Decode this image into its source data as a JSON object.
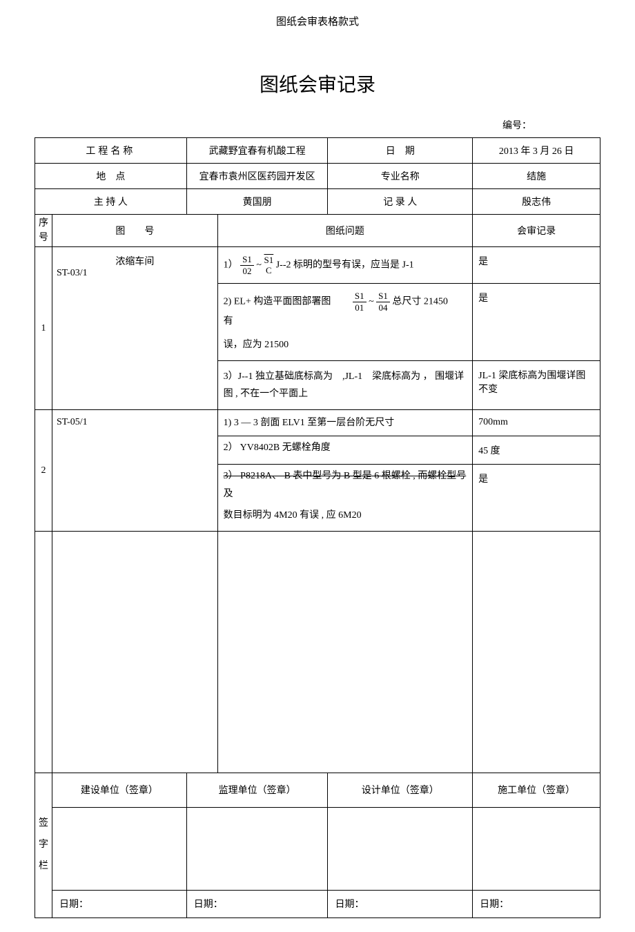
{
  "header": "图纸会审表格款式",
  "title": "图纸会审记录",
  "docNumberLabel": "编号：",
  "info": {
    "projectNameLabel": "工程名称",
    "projectName": "武藏野宜春有机酸工程",
    "dateLabel": "日　期",
    "date": "2013 年 3 月 26 日",
    "locationLabel": "地　点",
    "location": "宜春市袁州区医药园开发区",
    "specialtyLabel": "专业名称",
    "specialty": "结施",
    "hostLabel": "主 持 人",
    "host": "黄国朋",
    "recorderLabel": "记 录 人",
    "recorder": "殷志伟"
  },
  "tableHeaders": {
    "seq": "序号",
    "drawingNo": "图　　号",
    "problem": "图纸问题",
    "record": "会审记录"
  },
  "rows": [
    {
      "seq": "1",
      "drawingTitle": "浓缩车间",
      "drawingNo": "ST-03/1",
      "problems": [
        {
          "prefix": "1）",
          "frac1_top": "S1",
          "frac1_bot": "02",
          "tilde": " ~ ",
          "frac2_top": "S1",
          "frac2_bot": "C",
          "suffix": " J--2  标明的型号有误，应当是  J-1",
          "record": "是"
        },
        {
          "prefix": "2) EL+ 构造平面图部署图　　",
          "frac1_top": "S1",
          "frac1_bot": "01",
          "tilde": " ~ ",
          "frac2_top": "S1",
          "frac2_bot": "04",
          "mid": "  总尺寸 21450　　有",
          "line2": "误，应为 21500",
          "record": "是"
        },
        {
          "text": "3）J--1  独立基础底标高为　,JL-1　梁底标高为 ，  围堰详图 , 不在一个平面上",
          "record": "JL-1 梁底标高为围堰详图不变"
        }
      ]
    },
    {
      "seq": "2",
      "drawingNo": "ST-05/1",
      "problems": [
        {
          "text": "1) 3 — 3 剖面 ELV1 至第一层台阶无尺寸",
          "record": "700mm"
        },
        {
          "text": "2） YV8402B 无螺栓角度",
          "record": "45 度"
        },
        {
          "strikeText": "3） P8218A、 B 表中型号为  B 型是 6 根螺栓 , 而螺栓型号",
          "line1b": "及",
          "line2": "数目标明为 4M20 有误 , 应 6M20",
          "record": "是"
        }
      ]
    }
  ],
  "signature": {
    "sideLabel": "签字栏",
    "constructionUnit": "建设单位（签章）",
    "supervisionUnit": "监理单位（签章）",
    "designUnit": "设计单位（签章）",
    "contractorUnit": "施工单位（签章）",
    "dateLabel": "日期："
  }
}
